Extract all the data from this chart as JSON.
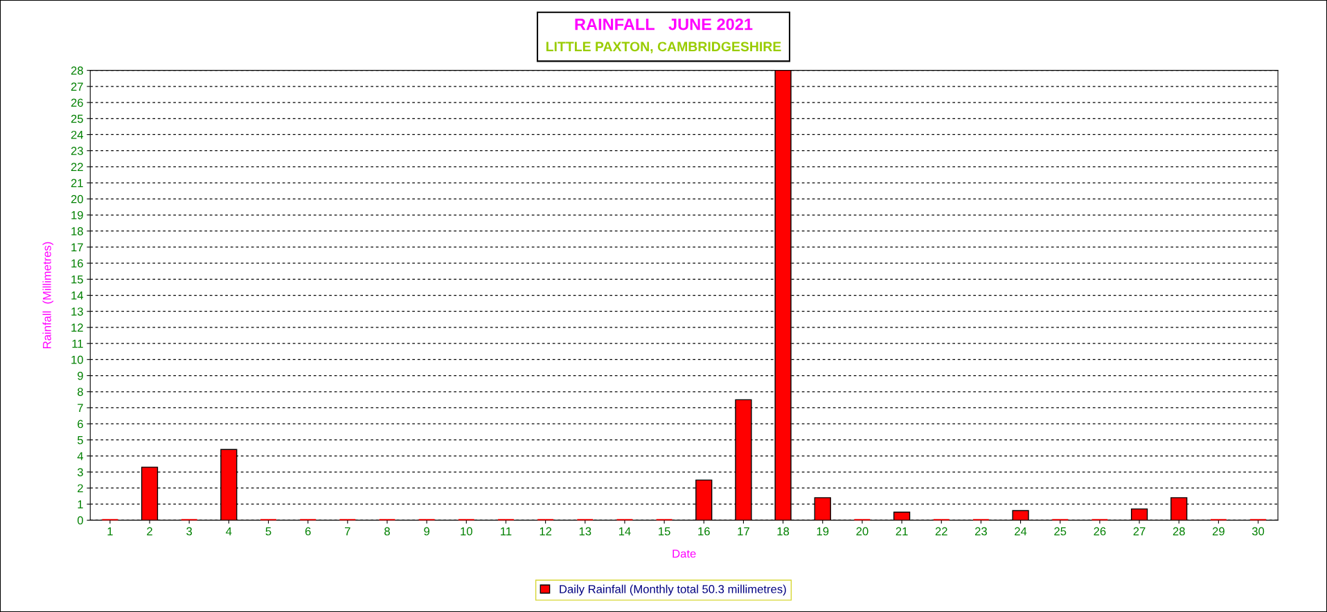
{
  "chart_data": {
    "type": "bar",
    "title": "RAINFALL   JUNE 2021",
    "subtitle": "LITTLE PAXTON, CAMBRIDGESHIRE",
    "xlabel": "Date",
    "ylabel": "Rainfall  (Millimetres)",
    "categories": [
      "1",
      "2",
      "3",
      "4",
      "5",
      "6",
      "7",
      "8",
      "9",
      "10",
      "11",
      "12",
      "13",
      "14",
      "15",
      "16",
      "17",
      "18",
      "19",
      "20",
      "21",
      "22",
      "23",
      "24",
      "25",
      "26",
      "27",
      "28",
      "29",
      "30"
    ],
    "series": [
      {
        "name": "Daily Rainfall (Monthly total 50.3 millimetres)",
        "color": "#ff0000",
        "values": [
          0,
          3.3,
          0,
          4.4,
          0,
          0,
          0,
          0,
          0,
          0,
          0,
          0,
          0,
          0,
          0,
          2.5,
          7.5,
          28.0,
          1.4,
          0,
          0.5,
          0,
          0,
          0.6,
          0,
          0,
          0.7,
          1.4,
          0,
          0
        ]
      }
    ],
    "ylim": [
      0,
      28
    ],
    "yticks": [
      0,
      1,
      2,
      3,
      4,
      5,
      6,
      7,
      8,
      9,
      10,
      11,
      12,
      13,
      14,
      15,
      16,
      17,
      18,
      19,
      20,
      21,
      22,
      23,
      24,
      25,
      26,
      27,
      28
    ],
    "grid": "y",
    "legend": "bottom"
  }
}
